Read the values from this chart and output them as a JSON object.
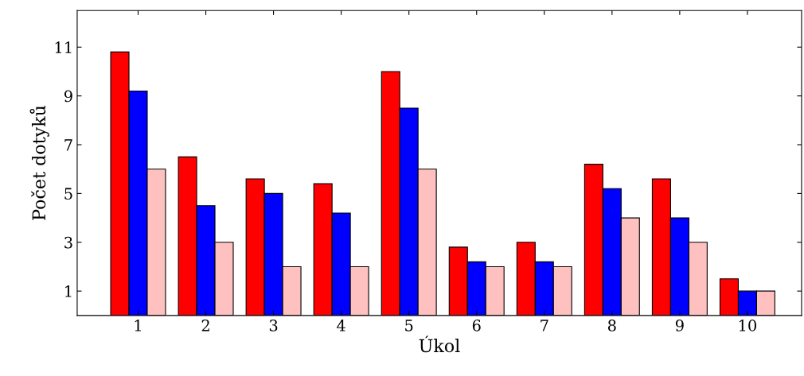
{
  "chart_data": {
    "type": "bar",
    "xlabel": "Úkol",
    "ylabel": "Počet dotyků",
    "categories": [
      "1",
      "2",
      "3",
      "4",
      "5",
      "6",
      "7",
      "8",
      "9",
      "10"
    ],
    "series": [
      {
        "color": "#ff0000",
        "values": [
          10.8,
          6.5,
          5.6,
          5.4,
          10,
          2.8,
          3,
          6.2,
          5.6,
          1.5
        ]
      },
      {
        "color": "#0000ff",
        "values": [
          9.2,
          4.5,
          5,
          4.2,
          8.5,
          2.2,
          2.2,
          5.2,
          4,
          1
        ]
      },
      {
        "color": "#ffc0c0",
        "values": [
          6,
          3,
          2,
          2,
          6,
          2,
          2,
          4,
          3,
          1
        ]
      }
    ],
    "ylim": [
      0,
      12.5
    ],
    "yticks": [
      1,
      3,
      5,
      7,
      9,
      11
    ],
    "grid": false,
    "legend": false
  }
}
